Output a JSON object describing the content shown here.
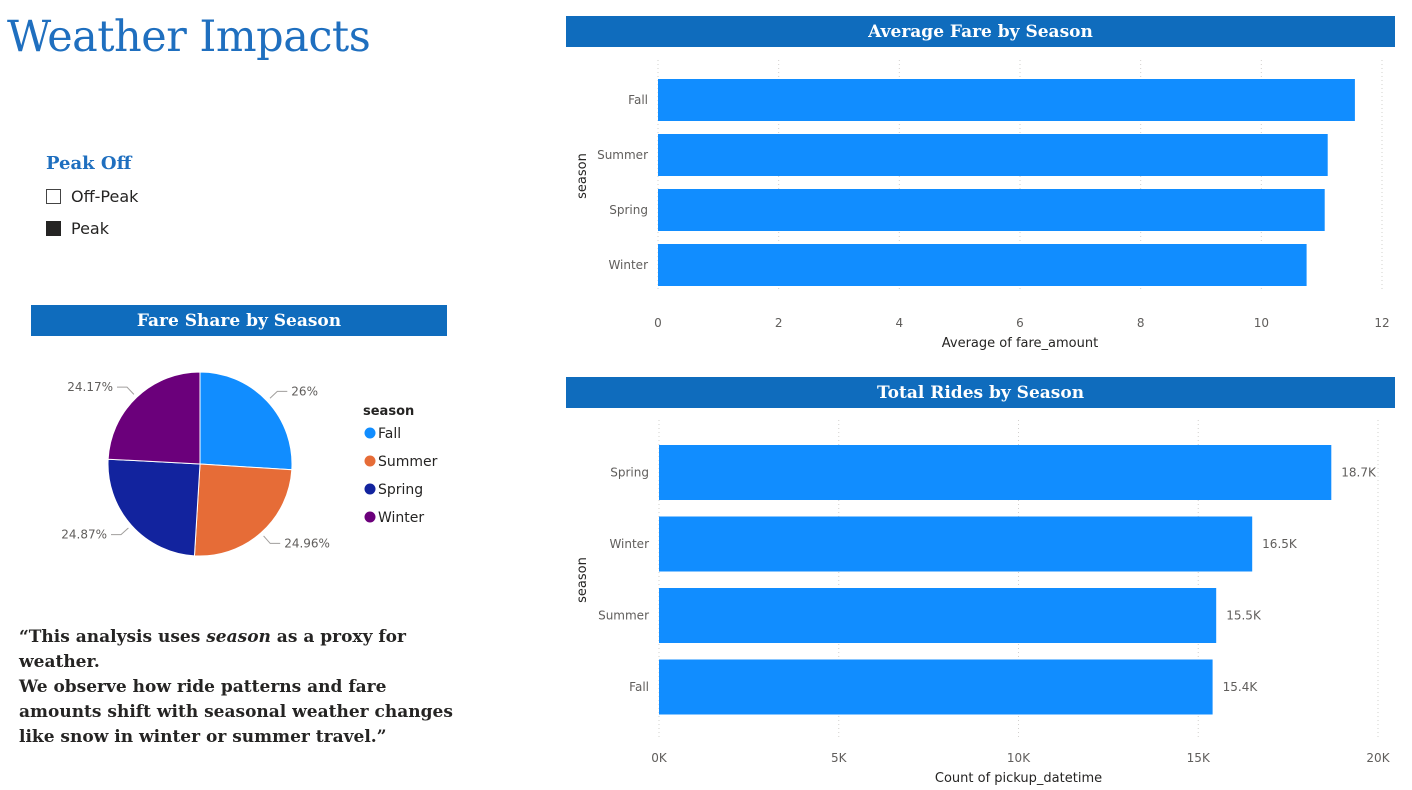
{
  "page": {
    "title": "Weather Impacts"
  },
  "slicer": {
    "title": "Peak Off",
    "items": [
      {
        "label": "Off-Peak",
        "checked": false
      },
      {
        "label": "Peak",
        "checked": true
      }
    ]
  },
  "colors": {
    "banner": "#0f6cbd",
    "bar": "#118dff",
    "title": "#1f6fbf",
    "Fall": "#118dff",
    "Summer": "#e66c37",
    "Spring": "#12239e",
    "Winter": "#6b007b"
  },
  "quote": {
    "before": "“This analysis uses ",
    "emphasis": "season",
    "after": " as a proxy for weather.\n We observe how ride patterns and fare amounts shift with seasonal weather changes like snow in winter or summer travel.”"
  },
  "chart_data": [
    {
      "type": "pie",
      "title": "Fare Share by Season",
      "legend_title": "season",
      "legend_position": "right",
      "categories": [
        "Fall",
        "Summer",
        "Spring",
        "Winter"
      ],
      "values": [
        26,
        24.96,
        24.87,
        24.17
      ],
      "labels": [
        "26%",
        "24.96%",
        "24.87%",
        "24.17%"
      ]
    },
    {
      "type": "bar",
      "orientation": "horizontal",
      "title": "Average Fare by Season",
      "xlabel": "Average of fare_amount",
      "ylabel": "season",
      "categories": [
        "Fall",
        "Summer",
        "Spring",
        "Winter"
      ],
      "values": [
        11.55,
        11.1,
        11.05,
        10.75
      ],
      "xlim": [
        0,
        12
      ],
      "xticks": [
        "0",
        "2",
        "4",
        "6",
        "8",
        "10",
        "12"
      ],
      "grid": true
    },
    {
      "type": "bar",
      "orientation": "horizontal",
      "title": "Total Rides by Season",
      "xlabel": "Count of pickup_datetime",
      "ylabel": "season",
      "categories": [
        "Spring",
        "Winter",
        "Summer",
        "Fall"
      ],
      "values": [
        18700,
        16500,
        15500,
        15400
      ],
      "labels": [
        "18.7K",
        "16.5K",
        "15.5K",
        "15.4K"
      ],
      "xlim": [
        0,
        20000
      ],
      "xticks": [
        "0K",
        "5K",
        "10K",
        "15K",
        "20K"
      ],
      "grid": true
    }
  ]
}
